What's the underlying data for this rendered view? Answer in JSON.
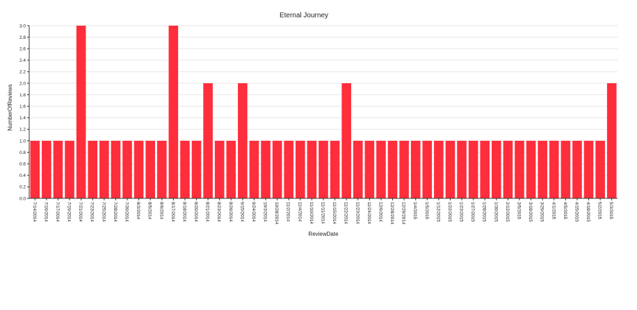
{
  "chart_data": {
    "type": "bar",
    "title": "Eternal Journey",
    "xlabel": "ReviewDate",
    "ylabel": "NumberOfReviews",
    "ylim": [
      0,
      3
    ],
    "yticks": [
      "0.0",
      "0.2",
      "0.4",
      "0.6",
      "0.8",
      "1.0",
      "1.2",
      "1.4",
      "1.6",
      "1.8",
      "2.0",
      "2.2",
      "2.4",
      "2.6",
      "2.8",
      "3.0"
    ],
    "grid": true,
    "bar_color": "#ff2e3c",
    "categories": [
      "7/14/2014",
      "7/16/2014",
      "7/17/2014",
      "7/19/2014",
      "7/21/2014",
      "7/23/2014",
      "7/25/2014",
      "7/28/2014",
      "7/30/2014",
      "8/3/2014",
      "8/5/2014",
      "8/6/2014",
      "8/17/2014",
      "8/18/2014",
      "8/20/2014",
      "8/21/2014",
      "8/23/2014",
      "8/26/2014",
      "9/15/2014",
      "9/24/2014",
      "10/3/2014",
      "10/28/2014",
      "11/2/2014",
      "11/4/2014",
      "11/10/2014",
      "11/11/2014",
      "11/15/2014",
      "11/22/2014",
      "11/23/2014",
      "11/24/2014",
      "12/9/2014",
      "12/28/2014",
      "12/29/2014",
      "1/4/2015",
      "1/5/2015",
      "1/12/2015",
      "1/22/2015",
      "1/23/2015",
      "1/27/2015",
      "1/28/2015",
      "1/30/2015",
      "2/12/2015",
      "3/5/2015",
      "3/18/2015",
      "3/29/2015",
      "4/1/2015",
      "4/5/2015",
      "4/15/2015",
      "4/18/2015",
      "5/2/2015",
      "5/3/2015"
    ],
    "values": [
      1,
      1,
      1,
      1,
      3,
      1,
      1,
      1,
      1,
      1,
      1,
      1,
      3,
      1,
      1,
      2,
      1,
      1,
      2,
      1,
      1,
      1,
      1,
      1,
      1,
      1,
      1,
      2,
      1,
      1,
      1,
      1,
      1,
      1,
      1,
      1,
      1,
      1,
      1,
      1,
      1,
      1,
      1,
      1,
      1,
      1,
      1,
      1,
      1,
      1,
      2
    ]
  }
}
